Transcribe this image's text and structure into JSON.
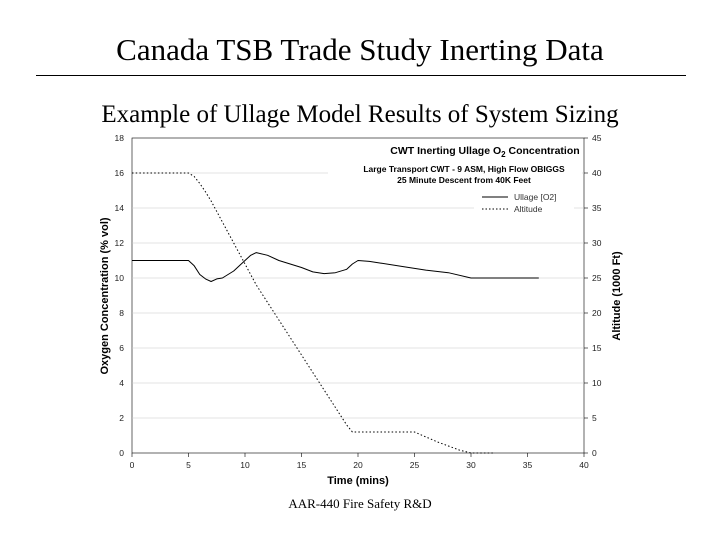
{
  "slide": {
    "title": "Canada TSB Trade Study Inerting Data",
    "subtitle": "Example of Ullage Model Results of System Sizing",
    "footer": "AAR-440 Fire Safety R&D"
  },
  "chart_data": {
    "type": "line",
    "title_prefix": "CWT Inerting Ullage O",
    "title_sub": "2",
    "title_suffix": " Concentration",
    "subtitle_lines": [
      "Large Transport CWT - 9 ASM, High Flow OBIGGS",
      "25 Minute Descent from 40K Feet"
    ],
    "xlabel": "Time (mins)",
    "ylabel": "Oxygen Concentration (% vol)",
    "y2label": "Altitude (1000 Ft)",
    "xlim": [
      0,
      40
    ],
    "ylim": [
      0,
      18
    ],
    "y2lim": [
      0,
      45
    ],
    "x_ticks": [
      "0",
      "5",
      "10",
      "15",
      "20",
      "25",
      "30",
      "35",
      "40"
    ],
    "y_ticks": [
      "0",
      "2",
      "4",
      "6",
      "8",
      "10",
      "12",
      "14",
      "16",
      "18"
    ],
    "y2_ticks": [
      "0",
      "5",
      "10",
      "15",
      "20",
      "25",
      "30",
      "35",
      "40",
      "45"
    ],
    "legend_position": "top-right",
    "series": [
      {
        "name": "Ullage [O2]",
        "axis": "left",
        "style": "solid",
        "x": [
          0,
          2,
          4,
          5,
          5.5,
          6,
          6.5,
          7,
          7.5,
          8,
          9,
          10,
          10.5,
          11,
          12,
          13,
          14,
          15,
          16,
          17,
          18,
          19,
          19.5,
          20,
          21,
          22,
          24,
          26,
          28,
          30,
          32,
          34,
          36
        ],
        "y": [
          11.0,
          11.0,
          11.0,
          11.0,
          10.7,
          10.2,
          9.95,
          9.8,
          9.95,
          10.0,
          10.4,
          11.0,
          11.3,
          11.45,
          11.3,
          11.0,
          10.8,
          10.6,
          10.35,
          10.25,
          10.3,
          10.5,
          10.8,
          11.0,
          10.95,
          10.85,
          10.65,
          10.45,
          10.3,
          10.0,
          10.0,
          10.0,
          10.0
        ]
      },
      {
        "name": "Altitude",
        "axis": "right",
        "style": "dotted",
        "x": [
          0,
          2,
          4,
          5,
          5.5,
          6,
          6.5,
          7,
          8,
          9,
          10,
          11,
          12,
          13,
          14,
          15,
          16,
          17,
          18,
          19,
          19.5,
          20,
          22,
          24,
          25,
          26,
          27,
          28,
          29,
          30,
          31,
          32
        ],
        "y": [
          40,
          40,
          40,
          40,
          39.5,
          38.5,
          37.3,
          36,
          33,
          30,
          27,
          24,
          21.5,
          19,
          16.5,
          14,
          11.5,
          9,
          6.5,
          4,
          3,
          3,
          3,
          3,
          3,
          2.3,
          1.6,
          1,
          0.4,
          0,
          0,
          0
        ]
      }
    ]
  }
}
